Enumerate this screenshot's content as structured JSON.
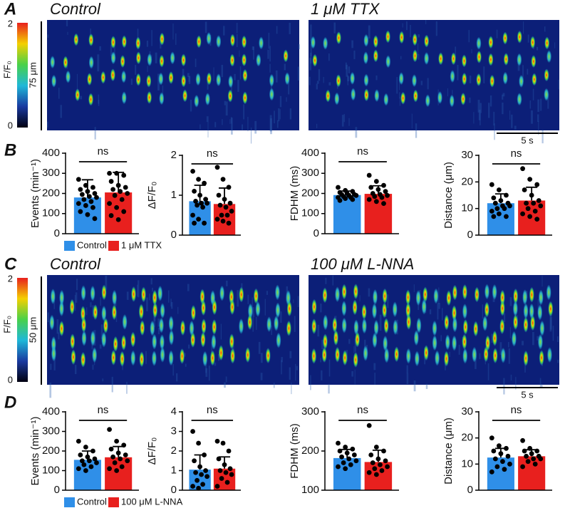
{
  "panels": [
    {
      "letter": "A",
      "left": "Control",
      "right": "1 μM TTX",
      "colorbar": {
        "label": "F/F₀",
        "ticks": [
          2,
          0
        ]
      },
      "space": "75 μm",
      "time": "5 s"
    },
    {
      "letter": "B"
    },
    {
      "letter": "C",
      "left": "Control",
      "right": "100 μM L-NNA",
      "colorbar": {
        "label": "F/F₀",
        "ticks": [
          2,
          0
        ]
      },
      "space": "50 μm",
      "time": "5 s"
    },
    {
      "letter": "D"
    }
  ],
  "legends": [
    [
      {
        "name": "Control",
        "color": "#2f8fe8"
      },
      {
        "name": "1 μM TTX",
        "color": "#e8201e"
      }
    ],
    [
      {
        "name": "Control",
        "color": "#2f8fe8"
      },
      {
        "name": "100 μM L-NNA",
        "color": "#e8201e"
      }
    ]
  ],
  "chart_data": [
    {
      "type": "bar",
      "ylabel": "Events (min⁻¹)",
      "ylim": [
        0,
        400
      ],
      "yticks": [
        0,
        100,
        200,
        300,
        400
      ],
      "annotation": "ns",
      "colors": [
        "#2f8fe8",
        "#e8201e"
      ],
      "values": [
        180,
        205
      ],
      "errors": [
        88,
        100
      ],
      "points": [
        [
          270,
          240,
          230,
          220,
          210,
          200,
          195,
          185,
          180,
          170,
          160,
          150,
          140,
          130,
          110,
          95,
          75
        ],
        [
          300,
          300,
          290,
          260,
          240,
          230,
          220,
          210,
          200,
          190,
          170,
          150,
          130,
          110,
          90,
          70
        ]
      ]
    },
    {
      "type": "bar",
      "ylabel": "ΔF/F₀",
      "ylim": [
        0,
        2
      ],
      "yticks": [
        0,
        1,
        2
      ],
      "annotation": "ns",
      "colors": [
        "#2f8fe8",
        "#e8201e"
      ],
      "values": [
        0.85,
        0.78
      ],
      "errors": [
        0.4,
        0.4
      ],
      "points": [
        [
          1.6,
          1.4,
          1.3,
          1.1,
          1.0,
          0.9,
          0.85,
          0.8,
          0.8,
          0.75,
          0.7,
          0.5,
          0.4,
          0.3,
          0.3
        ],
        [
          1.7,
          1.4,
          1.2,
          1.0,
          0.9,
          0.8,
          0.75,
          0.7,
          0.6,
          0.5,
          0.5,
          0.4,
          0.35,
          0.3
        ]
      ]
    },
    {
      "type": "bar",
      "ylabel": "FDHM (ms)",
      "ylim": [
        0,
        400
      ],
      "yticks": [
        0,
        100,
        200,
        300,
        400
      ],
      "annotation": "ns",
      "colors": [
        "#2f8fe8",
        "#e8201e"
      ],
      "values": [
        192,
        198
      ],
      "errors": [
        20,
        40
      ],
      "points": [
        [
          230,
          215,
          210,
          205,
          200,
          195,
          195,
          190,
          190,
          185,
          180,
          180,
          175,
          170,
          165
        ],
        [
          290,
          260,
          240,
          230,
          220,
          210,
          200,
          195,
          190,
          185,
          180,
          170,
          160,
          150
        ]
      ]
    },
    {
      "type": "bar",
      "ylabel": "Distance (μm)",
      "ylim": [
        0,
        30
      ],
      "yticks": [
        0,
        10,
        20,
        30
      ],
      "annotation": "ns",
      "colors": [
        "#2f8fe8",
        "#e8201e"
      ],
      "values": [
        12,
        13
      ],
      "errors": [
        3.5,
        5
      ],
      "points": [
        [
          19,
          17,
          15,
          14,
          13,
          12,
          12,
          11,
          11,
          10,
          10,
          9,
          8,
          7,
          7
        ],
        [
          25,
          21,
          19,
          17,
          15,
          13,
          12,
          12,
          11,
          10,
          9,
          8,
          7,
          6
        ]
      ]
    },
    {
      "type": "bar",
      "ylabel": "Events (min⁻¹)",
      "ylim": [
        0,
        400
      ],
      "yticks": [
        0,
        100,
        200,
        300,
        400
      ],
      "annotation": "ns",
      "colors": [
        "#2f8fe8",
        "#e8201e"
      ],
      "values": [
        155,
        168
      ],
      "errors": [
        45,
        55
      ],
      "points": [
        [
          250,
          220,
          200,
          180,
          170,
          160,
          150,
          150,
          140,
          130,
          120,
          110,
          100
        ],
        [
          310,
          250,
          230,
          210,
          190,
          180,
          170,
          160,
          150,
          140,
          120,
          110,
          100
        ]
      ]
    },
    {
      "type": "bar",
      "ylabel": "ΔF/F₀",
      "ylim": [
        0,
        4
      ],
      "yticks": [
        0,
        1,
        2,
        3,
        4
      ],
      "annotation": "ns",
      "colors": [
        "#2f8fe8",
        "#e8201e"
      ],
      "values": [
        1.05,
        1.1
      ],
      "errors": [
        0.75,
        0.6
      ],
      "points": [
        [
          3.0,
          2.4,
          1.8,
          1.5,
          1.2,
          1.0,
          0.9,
          0.8,
          0.7,
          0.5,
          0.3,
          0.2,
          0.1
        ],
        [
          2.5,
          2.4,
          2.0,
          1.6,
          1.3,
          1.1,
          1.0,
          0.9,
          0.8,
          0.6,
          0.4,
          0.2
        ]
      ]
    },
    {
      "type": "bar",
      "ylabel": "FDHM (ms)",
      "ylim": [
        100,
        300
      ],
      "yticks": [
        100,
        200,
        300
      ],
      "annotation": "ns",
      "colors": [
        "#2f8fe8",
        "#e8201e"
      ],
      "values": [
        182,
        172
      ],
      "errors": [
        22,
        30
      ],
      "points": [
        [
          220,
          210,
          205,
          200,
          195,
          190,
          185,
          180,
          175,
          170,
          165,
          160,
          155
        ],
        [
          265,
          210,
          200,
          190,
          180,
          175,
          170,
          165,
          160,
          155,
          150,
          145,
          140
        ]
      ]
    },
    {
      "type": "bar",
      "ylabel": "Distance (μm)",
      "ylim": [
        0,
        30
      ],
      "yticks": [
        0,
        10,
        20,
        30
      ],
      "annotation": "ns",
      "colors": [
        "#2f8fe8",
        "#e8201e"
      ],
      "values": [
        12.5,
        13
      ],
      "errors": [
        3.5,
        2.5
      ],
      "points": [
        [
          20,
          17,
          16,
          15,
          14,
          13,
          12,
          11,
          10,
          9,
          8,
          7
        ],
        [
          19,
          16,
          15,
          15,
          14,
          13,
          13,
          12,
          12,
          11,
          10,
          9
        ]
      ]
    }
  ]
}
